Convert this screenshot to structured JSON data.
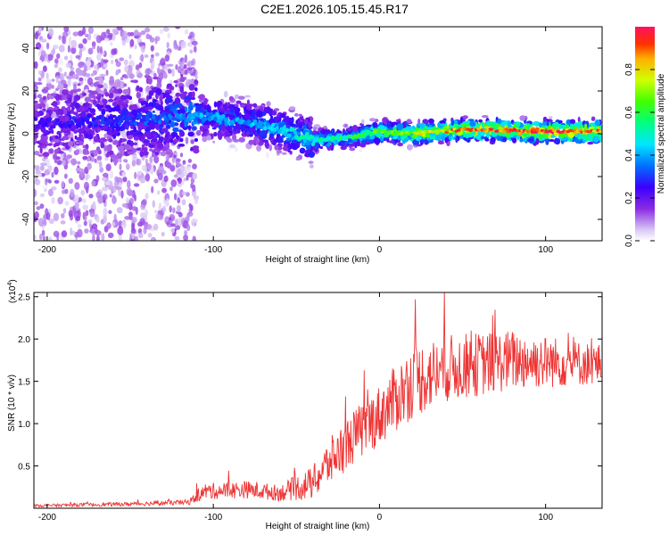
{
  "chart_data": [
    {
      "type": "heatmap",
      "title": "C2E1.2026.105.15.45.R17",
      "xlabel": "Height of straight line (km)",
      "ylabel": "Frequency (Hz)",
      "xlim": [
        -208,
        134
      ],
      "ylim": [
        -50,
        50
      ],
      "xticks": [
        -200,
        -100,
        0,
        100
      ],
      "yticks": [
        -40,
        -20,
        0,
        20,
        40
      ],
      "colorbar": {
        "label": "Normalized spectral amplitude",
        "range": [
          0,
          1
        ],
        "ticks": [
          "0.0",
          "0.2",
          "0.4",
          "0.6",
          "0.8"
        ],
        "tick_values": [
          0.0,
          0.2,
          0.4,
          0.6,
          0.8
        ]
      },
      "ridge": {
        "description_points": [
          {
            "x": -200,
            "f": 5,
            "amp": 0.25
          },
          {
            "x": -150,
            "f": 6,
            "amp": 0.3
          },
          {
            "x": -110,
            "f": 8,
            "amp": 0.4
          },
          {
            "x": -80,
            "f": 6,
            "amp": 0.4
          },
          {
            "x": -60,
            "f": 2,
            "amp": 0.45
          },
          {
            "x": -40,
            "f": -3,
            "amp": 0.5
          },
          {
            "x": -20,
            "f": -2,
            "amp": 0.55
          },
          {
            "x": 0,
            "f": 1,
            "amp": 0.65
          },
          {
            "x": 20,
            "f": 0,
            "amp": 0.75
          },
          {
            "x": 50,
            "f": 2,
            "amp": 0.9
          },
          {
            "x": 100,
            "f": 1,
            "amp": 0.95
          },
          {
            "x": 134,
            "f": 1,
            "amp": 0.9
          }
        ]
      }
    },
    {
      "type": "line",
      "xlabel": "Height of straight line (km)",
      "ylabel": "SNR (10 * v/v)",
      "scale_label": "(x10",
      "scale_exponent": "4",
      "xlim": [
        -208,
        134
      ],
      "ylim": [
        0,
        2.55
      ],
      "xticks": [
        -200,
        -100,
        0,
        100
      ],
      "yticks": [
        0.5,
        1.0,
        1.5,
        2.0,
        2.5
      ],
      "ytick_labels": [
        "0.5",
        "1.0",
        "1.5",
        "2.0",
        "2.5"
      ],
      "color": "#ee3333",
      "series_envelope": [
        {
          "x": -208,
          "mean": 0.03,
          "noise": 0.02
        },
        {
          "x": -150,
          "mean": 0.05,
          "noise": 0.03
        },
        {
          "x": -115,
          "mean": 0.07,
          "noise": 0.04
        },
        {
          "x": -105,
          "mean": 0.2,
          "noise": 0.12
        },
        {
          "x": -80,
          "mean": 0.22,
          "noise": 0.13
        },
        {
          "x": -60,
          "mean": 0.18,
          "noise": 0.12
        },
        {
          "x": -40,
          "mean": 0.3,
          "noise": 0.25
        },
        {
          "x": -30,
          "mean": 0.55,
          "noise": 0.35
        },
        {
          "x": -15,
          "mean": 0.85,
          "noise": 0.4
        },
        {
          "x": 0,
          "mean": 1.1,
          "noise": 0.45
        },
        {
          "x": 20,
          "mean": 1.5,
          "noise": 0.55
        },
        {
          "x": 40,
          "mean": 1.65,
          "noise": 0.5
        },
        {
          "x": 80,
          "mean": 1.75,
          "noise": 0.45
        },
        {
          "x": 134,
          "mean": 1.7,
          "noise": 0.3
        }
      ]
    }
  ]
}
